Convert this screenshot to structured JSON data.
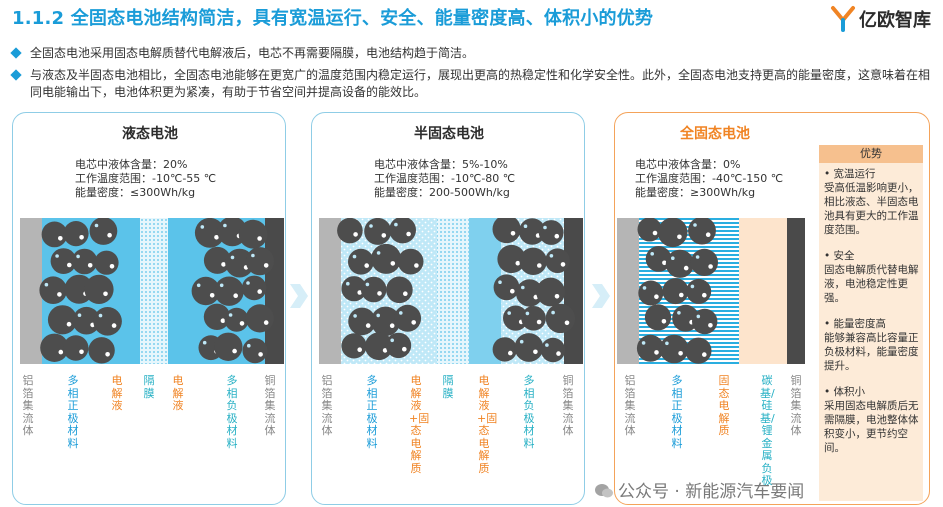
{
  "header": {
    "title": "1.1.2 全固态电池结构简洁，具有宽温运行、安全、能量密度高、体积小的优势",
    "logo_text": "亿欧智库"
  },
  "bullets": [
    "全固态电池采用固态电解质替代电解液后，电芯不再需要隔膜，电池结构趋于简洁。",
    "与液态及半固态电池相比，全固态电池能够在更宽广的温度范围内稳定运行，展现出更高的热稳定性和化学安全性。此外，全固态电池支持更高的能量密度，这意味着在相同电能输出下，电池体积更为紧凑，有助于节省空间并提高设备的能效比。"
  ],
  "panels": [
    {
      "title": "液态电池",
      "specs": [
        "电芯中液体含量：20%",
        "工作温度范围：-10℃-55 ℃",
        "能量密度：≤300Wh/kg"
      ],
      "labels": [
        "铝箔集流体",
        "多相正极材料",
        "电解液",
        "隔膜",
        "电解液",
        "多相负极材料",
        "铜箔集流体"
      ]
    },
    {
      "title": "半固态电池",
      "specs": [
        "电芯中液体含量：5%-10%",
        "工作温度范围：-10℃-80 ℃",
        "能量密度：200-500Wh/kg"
      ],
      "labels": [
        "铝箔集流体",
        "多相正极材料",
        "电解液+固态电解质",
        "隔膜",
        "电解液+固态电解质",
        "多相负极材料",
        "铜箔集流体"
      ]
    },
    {
      "title": "全固态电池",
      "specs": [
        "电芯中液体含量：0%",
        "工作温度范围：-40℃-150 ℃",
        "能量密度：≥300Wh/kg"
      ],
      "labels": [
        "铝箔集流体",
        "多相正极材料",
        "固态电解质",
        "碳基/硅基/锂金属负极",
        "铜箔集流体"
      ]
    }
  ],
  "advantages": {
    "header": "优势",
    "items": [
      {
        "title": "• 宽温运行",
        "text": "受高低温影响更小，相比液态、半固态电池具有更大的工作温度范围。"
      },
      {
        "title": "• 安全",
        "text": "固态电解质代替电解液，电池稳定性更强。"
      },
      {
        "title": "• 能量密度高",
        "text": "能够兼容高比容量正负极材料，能量密度提升。"
      },
      {
        "title": "• 体积小",
        "text": "采用固态电解质后无需隔膜，电池整体体积变小，更节约空间。"
      }
    ]
  },
  "watermark": "公众号 · 新能源汽车要闻",
  "colors": {
    "accent_blue": "#1a9cd8",
    "accent_orange": "#f08424",
    "liquid_blue": "#5bc3ea",
    "particle": "#4d4d4d"
  }
}
